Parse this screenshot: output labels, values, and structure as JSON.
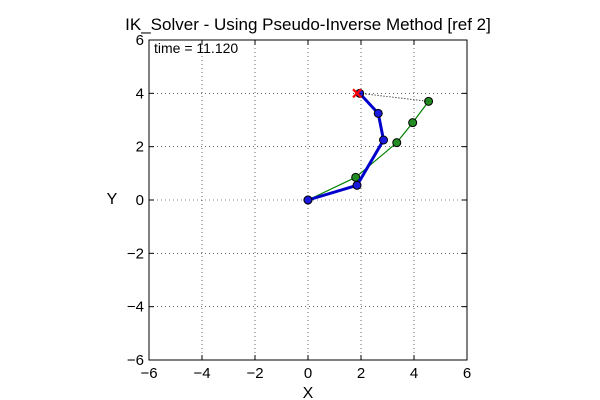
{
  "chart_data": {
    "type": "line",
    "title": "IK_Solver - Using Pseudo-Inverse Method [ref 2]",
    "xlabel": "X",
    "ylabel": "Y",
    "xlim": [
      -6,
      6
    ],
    "ylim": [
      -6,
      6
    ],
    "xticks": [
      -6,
      -4,
      -2,
      0,
      2,
      4,
      6
    ],
    "yticks": [
      -6,
      -4,
      -2,
      0,
      2,
      4,
      6
    ],
    "xtick_labels": [
      "−6",
      "−4",
      "−2",
      "0",
      "2",
      "4",
      "6"
    ],
    "ytick_labels": [
      "−6",
      "−4",
      "−2",
      "0",
      "2",
      "4",
      "6"
    ],
    "grid": true,
    "annotation": "time = 11.120",
    "series": [
      {
        "style": "thin-line-markers",
        "color": "#008000",
        "marker_color": "#228B22",
        "x": [
          0.0,
          1.8,
          3.35,
          3.95,
          4.55
        ],
        "y": [
          0.0,
          0.85,
          2.15,
          2.9,
          3.7
        ]
      },
      {
        "style": "thick-line-markers",
        "color": "#0000CC",
        "marker_color": "#1A1AE0",
        "x": [
          0.0,
          1.85,
          2.85,
          2.65,
          1.95
        ],
        "y": [
          0.0,
          0.55,
          2.25,
          3.25,
          4.0
        ]
      },
      {
        "style": "dotted-line",
        "color": "#000000",
        "x": [
          1.95,
          4.55
        ],
        "y": [
          4.0,
          3.7
        ]
      }
    ],
    "target": {
      "x": 1.85,
      "y": 4.0,
      "marker": "x",
      "color": "#FF0000"
    }
  }
}
